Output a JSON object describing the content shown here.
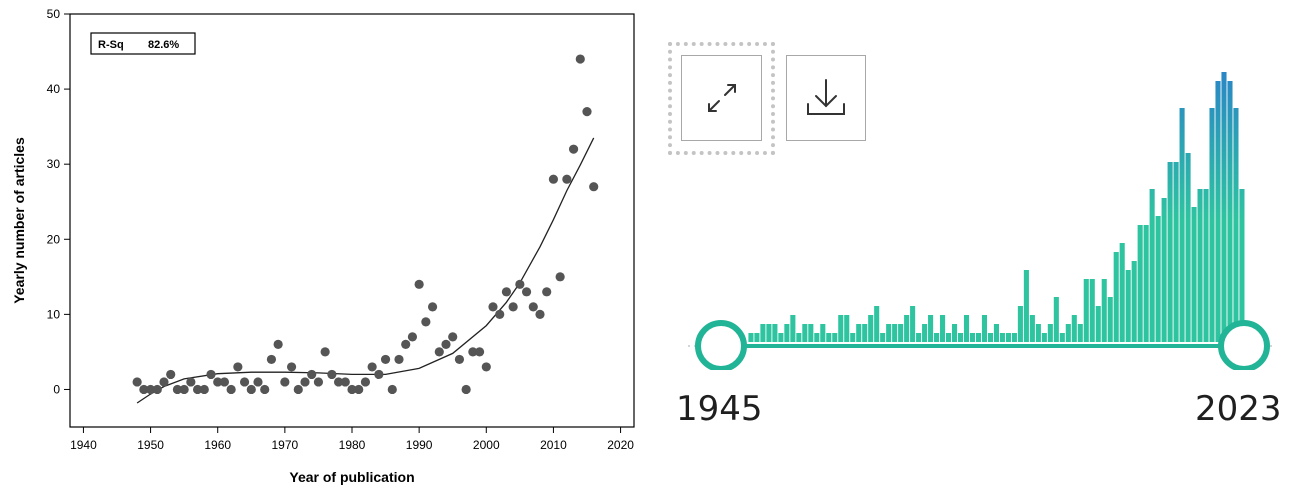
{
  "chart_data": [
    {
      "type": "scatter",
      "xlabel": "Year of publication",
      "ylabel": "Yearly number of articles",
      "xlim": [
        1938,
        2022
      ],
      "ylim": [
        -5,
        50
      ],
      "xticks": [
        1940,
        1950,
        1960,
        1970,
        1980,
        1990,
        2000,
        2010,
        2020
      ],
      "yticks": [
        0,
        10,
        20,
        30,
        40,
        50
      ],
      "annotation": {
        "label": "R-Sq",
        "value": "82.6%"
      },
      "points": [
        [
          1948,
          1
        ],
        [
          1949,
          0
        ],
        [
          1950,
          0
        ],
        [
          1951,
          0
        ],
        [
          1952,
          1
        ],
        [
          1953,
          2
        ],
        [
          1954,
          0
        ],
        [
          1955,
          0
        ],
        [
          1956,
          1
        ],
        [
          1957,
          0
        ],
        [
          1958,
          0
        ],
        [
          1959,
          2
        ],
        [
          1960,
          1
        ],
        [
          1961,
          1
        ],
        [
          1962,
          0
        ],
        [
          1963,
          3
        ],
        [
          1964,
          1
        ],
        [
          1965,
          0
        ],
        [
          1966,
          1
        ],
        [
          1967,
          0
        ],
        [
          1968,
          4
        ],
        [
          1969,
          6
        ],
        [
          1970,
          1
        ],
        [
          1971,
          3
        ],
        [
          1972,
          0
        ],
        [
          1973,
          1
        ],
        [
          1974,
          2
        ],
        [
          1975,
          1
        ],
        [
          1976,
          5
        ],
        [
          1977,
          2
        ],
        [
          1978,
          1
        ],
        [
          1979,
          1
        ],
        [
          1980,
          0
        ],
        [
          1981,
          0
        ],
        [
          1982,
          1
        ],
        [
          1983,
          3
        ],
        [
          1984,
          2
        ],
        [
          1985,
          4
        ],
        [
          1986,
          0
        ],
        [
          1987,
          4
        ],
        [
          1988,
          6
        ],
        [
          1989,
          7
        ],
        [
          1990,
          14
        ],
        [
          1991,
          9
        ],
        [
          1992,
          11
        ],
        [
          1993,
          5
        ],
        [
          1994,
          6
        ],
        [
          1995,
          7
        ],
        [
          1996,
          4
        ],
        [
          1997,
          0
        ],
        [
          1998,
          5
        ],
        [
          1999,
          5
        ],
        [
          2000,
          3
        ],
        [
          2001,
          11
        ],
        [
          2002,
          10
        ],
        [
          2003,
          13
        ],
        [
          2004,
          11
        ],
        [
          2005,
          14
        ],
        [
          2006,
          13
        ],
        [
          2007,
          11
        ],
        [
          2008,
          10
        ],
        [
          2009,
          13
        ],
        [
          2010,
          28
        ],
        [
          2011,
          15
        ],
        [
          2012,
          28
        ],
        [
          2013,
          32
        ],
        [
          2014,
          44
        ],
        [
          2015,
          37
        ],
        [
          2016,
          27
        ]
      ],
      "fit_curve": [
        [
          1948,
          -1.8
        ],
        [
          1950,
          -0.6
        ],
        [
          1952,
          0.4
        ],
        [
          1955,
          1.4
        ],
        [
          1960,
          2.1
        ],
        [
          1965,
          2.3
        ],
        [
          1970,
          2.3
        ],
        [
          1975,
          2.2
        ],
        [
          1980,
          2.0
        ],
        [
          1985,
          2.0
        ],
        [
          1990,
          2.8
        ],
        [
          1995,
          4.8
        ],
        [
          2000,
          8.5
        ],
        [
          2003,
          11.6
        ],
        [
          2005,
          14.2
        ],
        [
          2008,
          19.0
        ],
        [
          2010,
          22.6
        ],
        [
          2012,
          26.5
        ],
        [
          2014,
          29.9
        ],
        [
          2016,
          33.5
        ]
      ]
    },
    {
      "type": "bar",
      "range_start": 1945,
      "range_end": 2023,
      "color_low": "#2ec4a0",
      "color_high": "#2a86c6",
      "values": [
        1,
        1,
        2,
        2,
        2,
        1,
        2,
        3,
        1,
        2,
        2,
        1,
        2,
        1,
        1,
        3,
        3,
        1,
        2,
        2,
        3,
        4,
        1,
        2,
        2,
        2,
        3,
        4,
        1,
        2,
        3,
        1,
        3,
        1,
        2,
        1,
        3,
        1,
        1,
        3,
        1,
        2,
        1,
        1,
        1,
        4,
        8,
        3,
        2,
        1,
        2,
        5,
        1,
        2,
        3,
        2,
        7,
        7,
        4,
        7,
        5,
        10,
        11,
        8,
        9,
        13,
        13,
        17,
        14,
        16,
        20,
        20,
        26,
        21,
        15,
        17,
        17,
        26,
        29,
        30,
        29,
        26,
        17
      ]
    }
  ],
  "toolbar": {
    "expand_icon": "expand-arrows-icon",
    "download_icon": "download-icon"
  },
  "range_slider": {
    "start_label": "1945",
    "end_label": "2023"
  }
}
